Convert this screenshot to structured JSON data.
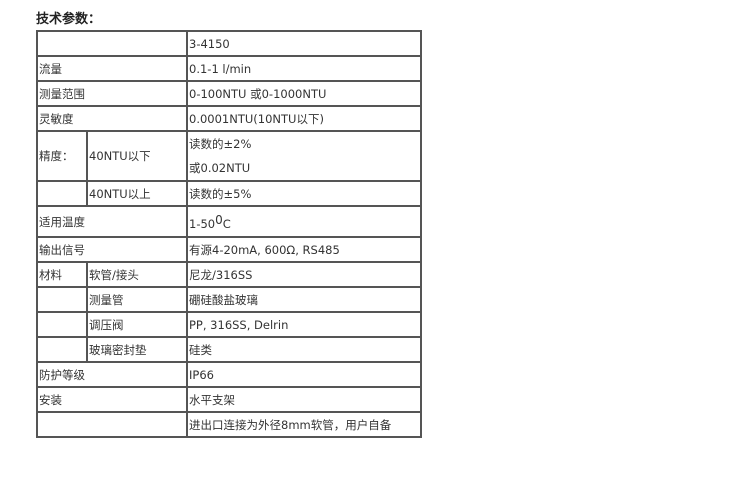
{
  "title": "技术参数：",
  "rows": [
    {
      "label": "",
      "value": "3-4150"
    },
    {
      "label": "流量",
      "value": "0.1-1 l/min"
    },
    {
      "label": "测量范围",
      "value": "0-100NTU 或0-1000NTU"
    },
    {
      "label": "灵敏度",
      "value": "0.0001NTU(10NTU以下)"
    },
    {
      "label": "精度：",
      "sub": "40NTU以下",
      "value_lines": [
        "读数的±2%",
        "或0.02NTU"
      ]
    },
    {
      "label": "",
      "sub": "40NTU以上",
      "value": "读数的±5%"
    },
    {
      "label": "适用温度",
      "value": "1-50",
      "sup": "0",
      "unit": "C"
    },
    {
      "label": "输出信号",
      "value": "有源4-20mA, 600Ω, RS485"
    },
    {
      "label": "材料",
      "sub": "软管/接头",
      "value": "尼龙/316SS"
    },
    {
      "label": "",
      "sub": "测量管",
      "value": "硼硅酸盐玻璃"
    },
    {
      "label": "",
      "sub": "调压阀",
      "value": "PP, 316SS, Delrin"
    },
    {
      "label": "",
      "sub": "玻璃密封垫",
      "value": "硅类"
    },
    {
      "label": "防护等级",
      "value": "IP66"
    },
    {
      "label": "安装",
      "value": "水平支架"
    },
    {
      "label": "",
      "value": "进出口连接为外径8mm软管，用户自备"
    }
  ]
}
